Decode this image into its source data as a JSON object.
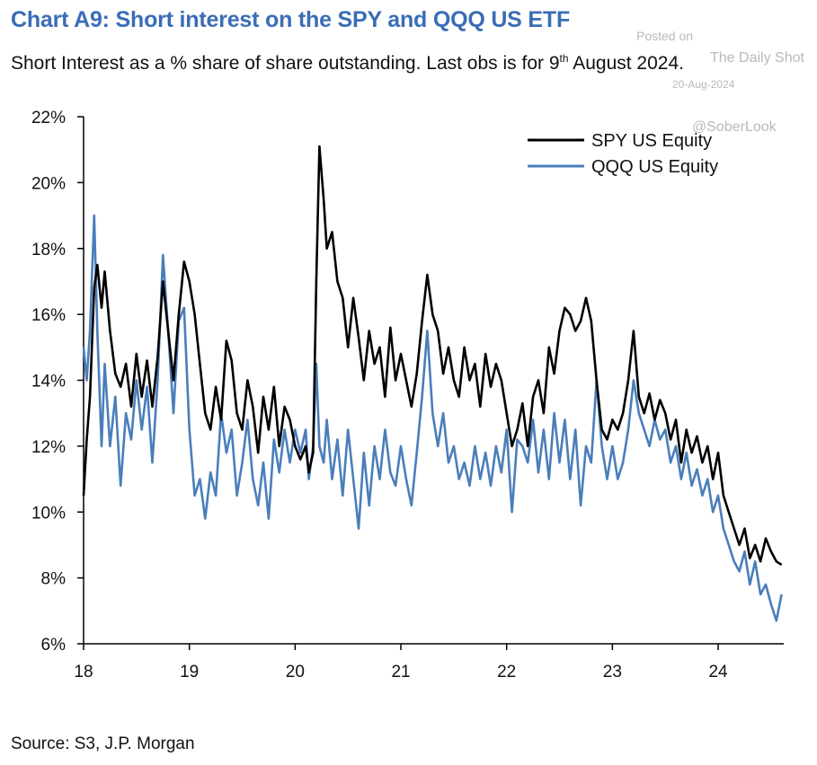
{
  "chart_data": {
    "type": "line",
    "title": "Chart A9: Short interest on the SPY and QQQ US ETF",
    "subtitle_pre": "Short Interest as a % share of share outstanding. Last obs is for 9",
    "subtitle_sup": "th",
    "subtitle_post": " August 2024.",
    "source": "Source: S3, J.P. Morgan",
    "ylim": [
      6,
      22
    ],
    "xlim": [
      2018.0,
      2024.62
    ],
    "y_ticks": [
      6,
      8,
      10,
      12,
      14,
      16,
      18,
      20,
      22
    ],
    "y_tick_labels": [
      "6%",
      "8%",
      "10%",
      "12%",
      "14%",
      "16%",
      "18%",
      "20%",
      "22%"
    ],
    "x_ticks": [
      2018,
      2019,
      2020,
      2021,
      2022,
      2023,
      2024
    ],
    "x_tick_labels": [
      "18",
      "19",
      "20",
      "21",
      "22",
      "23",
      "24"
    ],
    "legend": "top-right",
    "grid": false,
    "series": [
      {
        "name": "SPY US Equity",
        "color": "#000000",
        "x": [
          2018.0,
          2018.03,
          2018.06,
          2018.1,
          2018.13,
          2018.17,
          2018.2,
          2018.25,
          2018.3,
          2018.35,
          2018.4,
          2018.45,
          2018.5,
          2018.55,
          2018.6,
          2018.65,
          2018.7,
          2018.75,
          2018.8,
          2018.85,
          2018.9,
          2018.95,
          2019.0,
          2019.05,
          2019.1,
          2019.15,
          2019.2,
          2019.25,
          2019.3,
          2019.35,
          2019.4,
          2019.45,
          2019.5,
          2019.55,
          2019.6,
          2019.65,
          2019.7,
          2019.75,
          2019.8,
          2019.85,
          2019.9,
          2019.95,
          2020.0,
          2020.05,
          2020.1,
          2020.13,
          2020.17,
          2020.2,
          2020.23,
          2020.27,
          2020.3,
          2020.35,
          2020.4,
          2020.45,
          2020.5,
          2020.55,
          2020.6,
          2020.65,
          2020.7,
          2020.75,
          2020.8,
          2020.85,
          2020.9,
          2020.95,
          2021.0,
          2021.05,
          2021.1,
          2021.15,
          2021.2,
          2021.25,
          2021.3,
          2021.35,
          2021.4,
          2021.45,
          2021.5,
          2021.55,
          2021.6,
          2021.65,
          2021.7,
          2021.75,
          2021.8,
          2021.85,
          2021.9,
          2021.95,
          2022.0,
          2022.05,
          2022.1,
          2022.15,
          2022.2,
          2022.25,
          2022.3,
          2022.35,
          2022.4,
          2022.45,
          2022.5,
          2022.55,
          2022.6,
          2022.65,
          2022.7,
          2022.75,
          2022.8,
          2022.85,
          2022.9,
          2022.95,
          2023.0,
          2023.05,
          2023.1,
          2023.15,
          2023.2,
          2023.25,
          2023.3,
          2023.35,
          2023.4,
          2023.45,
          2023.5,
          2023.55,
          2023.6,
          2023.65,
          2023.7,
          2023.75,
          2023.8,
          2023.85,
          2023.9,
          2023.95,
          2024.0,
          2024.05,
          2024.1,
          2024.15,
          2024.2,
          2024.25,
          2024.3,
          2024.35,
          2024.4,
          2024.45,
          2024.5,
          2024.55,
          2024.6
        ],
        "y": [
          10.5,
          12.2,
          13.5,
          16.8,
          17.5,
          16.2,
          17.3,
          15.5,
          14.2,
          13.8,
          14.5,
          13.2,
          14.8,
          13.5,
          14.6,
          13.2,
          14.7,
          17.0,
          15.5,
          14.0,
          16.0,
          17.6,
          17.0,
          16.0,
          14.5,
          13.0,
          12.5,
          13.8,
          12.8,
          15.2,
          14.6,
          13.0,
          12.5,
          14.0,
          13.2,
          11.8,
          13.5,
          12.5,
          13.8,
          12.0,
          13.2,
          12.8,
          12.0,
          11.6,
          12.0,
          11.2,
          11.8,
          17.0,
          21.1,
          19.5,
          18.0,
          18.5,
          17.0,
          16.5,
          15.0,
          16.5,
          15.3,
          14.0,
          15.5,
          14.5,
          15.0,
          13.5,
          15.6,
          14.0,
          14.8,
          14.0,
          13.2,
          14.2,
          15.8,
          17.2,
          16.0,
          15.5,
          14.2,
          15.0,
          14.0,
          13.5,
          15.0,
          14.0,
          14.5,
          13.2,
          14.8,
          13.8,
          14.5,
          14.0,
          13.0,
          12.0,
          12.5,
          13.3,
          12.0,
          13.5,
          14.0,
          13.0,
          15.0,
          14.2,
          15.5,
          16.2,
          16.0,
          15.5,
          15.8,
          16.5,
          15.8,
          14.0,
          12.5,
          12.2,
          12.8,
          12.5,
          13.0,
          14.0,
          15.5,
          13.5,
          13.0,
          13.6,
          12.8,
          13.4,
          13.0,
          12.2,
          12.8,
          11.5,
          12.5,
          11.8,
          12.3,
          11.5,
          12.0,
          11.0,
          11.8,
          10.5,
          10.0,
          9.5,
          9.0,
          9.5,
          8.6,
          9.0,
          8.5,
          9.2,
          8.8,
          8.5,
          8.4
        ],
        "legend_label": "SPY US Equity"
      },
      {
        "name": "QQQ US Equity",
        "color": "#4a7ebb",
        "x": [
          2018.0,
          2018.03,
          2018.06,
          2018.1,
          2018.13,
          2018.17,
          2018.2,
          2018.25,
          2018.3,
          2018.35,
          2018.4,
          2018.45,
          2018.5,
          2018.55,
          2018.6,
          2018.65,
          2018.7,
          2018.75,
          2018.8,
          2018.85,
          2018.9,
          2018.95,
          2019.0,
          2019.05,
          2019.1,
          2019.15,
          2019.2,
          2019.25,
          2019.3,
          2019.35,
          2019.4,
          2019.45,
          2019.5,
          2019.55,
          2019.6,
          2019.65,
          2019.7,
          2019.75,
          2019.8,
          2019.85,
          2019.9,
          2019.95,
          2020.0,
          2020.05,
          2020.1,
          2020.13,
          2020.17,
          2020.2,
          2020.23,
          2020.27,
          2020.3,
          2020.35,
          2020.4,
          2020.45,
          2020.5,
          2020.55,
          2020.6,
          2020.65,
          2020.7,
          2020.75,
          2020.8,
          2020.85,
          2020.9,
          2020.95,
          2021.0,
          2021.05,
          2021.1,
          2021.15,
          2021.2,
          2021.25,
          2021.3,
          2021.35,
          2021.4,
          2021.45,
          2021.5,
          2021.55,
          2021.6,
          2021.65,
          2021.7,
          2021.75,
          2021.8,
          2021.85,
          2021.9,
          2021.95,
          2022.0,
          2022.05,
          2022.1,
          2022.15,
          2022.2,
          2022.25,
          2022.3,
          2022.35,
          2022.4,
          2022.45,
          2022.5,
          2022.55,
          2022.6,
          2022.65,
          2022.7,
          2022.75,
          2022.8,
          2022.85,
          2022.9,
          2022.95,
          2023.0,
          2023.05,
          2023.1,
          2023.15,
          2023.2,
          2023.25,
          2023.3,
          2023.35,
          2023.4,
          2023.45,
          2023.5,
          2023.55,
          2023.6,
          2023.65,
          2023.7,
          2023.75,
          2023.8,
          2023.85,
          2023.9,
          2023.95,
          2024.0,
          2024.05,
          2024.1,
          2024.15,
          2024.2,
          2024.25,
          2024.3,
          2024.35,
          2024.4,
          2024.45,
          2024.5,
          2024.55,
          2024.6
        ],
        "y": [
          15.0,
          14.0,
          15.5,
          19.0,
          15.5,
          12.0,
          14.5,
          12.0,
          13.5,
          10.8,
          13.0,
          12.2,
          14.0,
          12.5,
          13.8,
          11.5,
          14.0,
          17.8,
          15.5,
          13.0,
          15.8,
          16.2,
          12.5,
          10.5,
          11.0,
          9.8,
          11.2,
          10.5,
          13.0,
          11.8,
          12.5,
          10.5,
          11.5,
          12.8,
          11.0,
          10.2,
          11.5,
          9.8,
          12.2,
          11.2,
          12.5,
          11.5,
          12.5,
          11.8,
          12.5,
          11.0,
          12.0,
          14.5,
          12.0,
          11.5,
          12.8,
          11.0,
          12.2,
          10.5,
          12.5,
          11.0,
          9.5,
          11.8,
          10.2,
          12.0,
          11.0,
          12.5,
          11.2,
          10.8,
          12.0,
          11.0,
          10.2,
          11.8,
          13.5,
          15.5,
          13.0,
          12.0,
          13.0,
          11.5,
          12.0,
          11.0,
          11.5,
          10.8,
          12.0,
          11.0,
          11.8,
          10.8,
          12.0,
          11.2,
          12.5,
          10.0,
          12.2,
          12.0,
          11.5,
          12.8,
          11.2,
          12.5,
          11.0,
          13.0,
          11.5,
          12.8,
          11.0,
          12.5,
          10.2,
          12.0,
          11.5,
          14.0,
          12.0,
          11.0,
          12.0,
          11.0,
          11.5,
          12.5,
          14.0,
          13.0,
          12.5,
          12.0,
          12.8,
          12.2,
          12.5,
          11.5,
          12.0,
          11.0,
          11.8,
          10.8,
          11.3,
          10.5,
          11.0,
          10.0,
          10.5,
          9.5,
          9.0,
          8.5,
          8.2,
          8.8,
          7.8,
          8.5,
          7.5,
          7.8,
          7.2,
          6.7,
          7.5
        ],
        "legend_label": "QQQ US Equity"
      }
    ]
  },
  "watermark": {
    "posted": "Posted on",
    "site": "The Daily Shot",
    "date": "20-Aug-2024",
    "handle": "@SoberLook"
  }
}
